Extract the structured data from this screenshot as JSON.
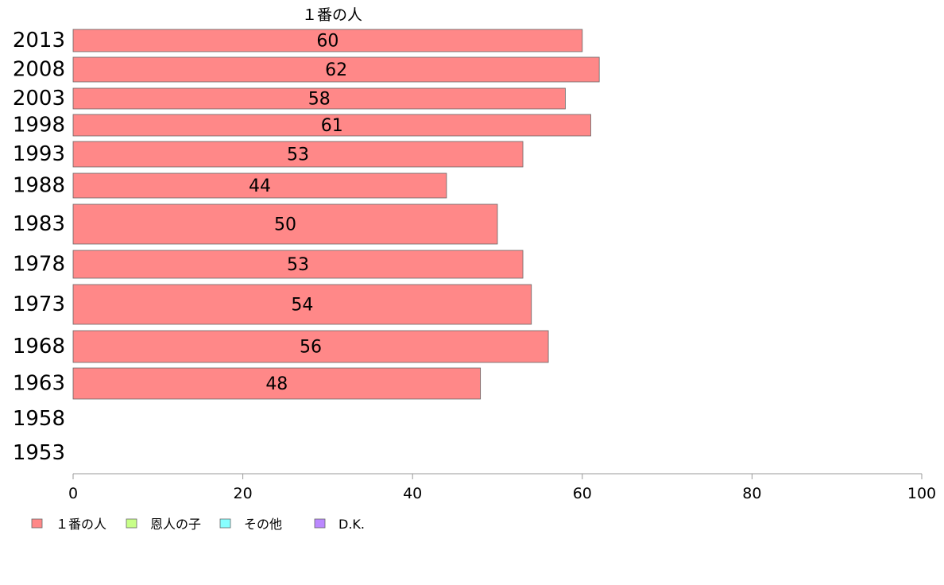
{
  "chart_data": {
    "type": "bar",
    "orientation": "horizontal",
    "stacked": true,
    "series_header": "１番の人",
    "categories": [
      "2013",
      "2008",
      "2003",
      "1998",
      "1993",
      "1988",
      "1983",
      "1978",
      "1973",
      "1968",
      "1963",
      "1958",
      "1953"
    ],
    "series": [
      {
        "name": "１番の人",
        "color": "#ff8888",
        "values": [
          60,
          62,
          58,
          61,
          53,
          44,
          50,
          53,
          54,
          56,
          48,
          null,
          null
        ]
      },
      {
        "name": "恩人の子",
        "color": "#c8ff88",
        "values": [
          null,
          null,
          null,
          null,
          null,
          null,
          null,
          null,
          null,
          null,
          null,
          null,
          null
        ]
      },
      {
        "name": "その他",
        "color": "#88ffff",
        "values": [
          null,
          null,
          null,
          null,
          null,
          null,
          null,
          null,
          null,
          null,
          null,
          null,
          null
        ]
      },
      {
        "name": "D.K.",
        "color": "#bb88ff",
        "values": [
          null,
          null,
          null,
          null,
          null,
          null,
          null,
          null,
          null,
          null,
          null,
          null,
          null
        ]
      }
    ],
    "data_labels": [
      "60",
      "62",
      "58",
      "61",
      "53",
      "44",
      "50",
      "53",
      "54",
      "56",
      "48",
      "",
      ""
    ],
    "xlim": [
      0,
      100
    ],
    "xticks": [
      "0",
      "20",
      "40",
      "60",
      "80",
      "100"
    ],
    "xlabel": "",
    "ylabel": "",
    "grid": false,
    "legend_position": "bottom-left"
  }
}
